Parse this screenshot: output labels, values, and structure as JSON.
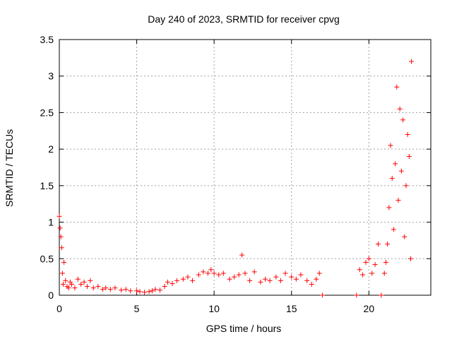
{
  "chart_data": {
    "type": "scatter",
    "title": "Day 240 of 2023, SRMTID for receiver cpvg",
    "xlabel": "GPS time / hours",
    "ylabel": "SRMTID / TECUs",
    "xlim": [
      0,
      24
    ],
    "ylim": [
      0,
      3.5
    ],
    "xticks": [
      0,
      5,
      10,
      15,
      20
    ],
    "yticks": [
      0,
      0.5,
      1,
      1.5,
      2,
      2.5,
      3,
      3.5
    ],
    "grid": true,
    "marker": "+",
    "color": "#ff0000",
    "series": [
      {
        "name": "SRMTID",
        "x": [
          0.0,
          0.05,
          0.1,
          0.15,
          0.2,
          0.25,
          0.3,
          0.4,
          0.5,
          0.6,
          0.7,
          0.8,
          1.0,
          1.2,
          1.4,
          1.6,
          1.8,
          2.0,
          2.2,
          2.5,
          2.8,
          3.0,
          3.3,
          3.6,
          4.0,
          4.3,
          4.6,
          5.0,
          5.2,
          5.5,
          5.8,
          6.0,
          6.2,
          6.5,
          6.8,
          7.0,
          7.3,
          7.6,
          8.0,
          8.3,
          8.6,
          9.0,
          9.3,
          9.6,
          9.8,
          10.0,
          10.3,
          10.6,
          11.0,
          11.3,
          11.6,
          11.8,
          12.0,
          12.3,
          12.6,
          13.0,
          13.3,
          13.6,
          14.0,
          14.3,
          14.6,
          15.0,
          15.3,
          15.6,
          16.0,
          16.3,
          16.6,
          16.8,
          17.0,
          19.2,
          19.4,
          19.6,
          19.8,
          20.0,
          20.2,
          20.4,
          20.6,
          20.8,
          21.0,
          21.1,
          21.2,
          21.3,
          21.4,
          21.5,
          21.6,
          21.7,
          21.8,
          21.9,
          22.0,
          22.1,
          22.2,
          22.3,
          22.4,
          22.5,
          22.6,
          22.7,
          22.75
        ],
        "y": [
          1.08,
          0.92,
          0.8,
          0.65,
          0.3,
          0.15,
          0.45,
          0.2,
          0.12,
          0.1,
          0.18,
          0.15,
          0.1,
          0.22,
          0.15,
          0.18,
          0.12,
          0.2,
          0.1,
          0.12,
          0.08,
          0.1,
          0.08,
          0.1,
          0.07,
          0.08,
          0.06,
          0.06,
          0.05,
          0.04,
          0.05,
          0.06,
          0.08,
          0.07,
          0.12,
          0.18,
          0.16,
          0.2,
          0.22,
          0.25,
          0.2,
          0.28,
          0.32,
          0.3,
          0.35,
          0.3,
          0.28,
          0.3,
          0.22,
          0.25,
          0.28,
          0.55,
          0.3,
          0.2,
          0.32,
          0.18,
          0.22,
          0.2,
          0.25,
          0.2,
          0.3,
          0.25,
          0.22,
          0.28,
          0.2,
          0.15,
          0.22,
          0.3,
          0.0,
          0.0,
          0.35,
          0.28,
          0.45,
          0.5,
          0.3,
          0.42,
          0.7,
          0.0,
          0.3,
          0.45,
          0.7,
          1.2,
          2.05,
          1.6,
          0.9,
          1.8,
          2.85,
          1.3,
          2.55,
          1.7,
          2.4,
          0.8,
          1.5,
          2.2,
          1.9,
          0.5,
          3.2
        ]
      }
    ]
  }
}
